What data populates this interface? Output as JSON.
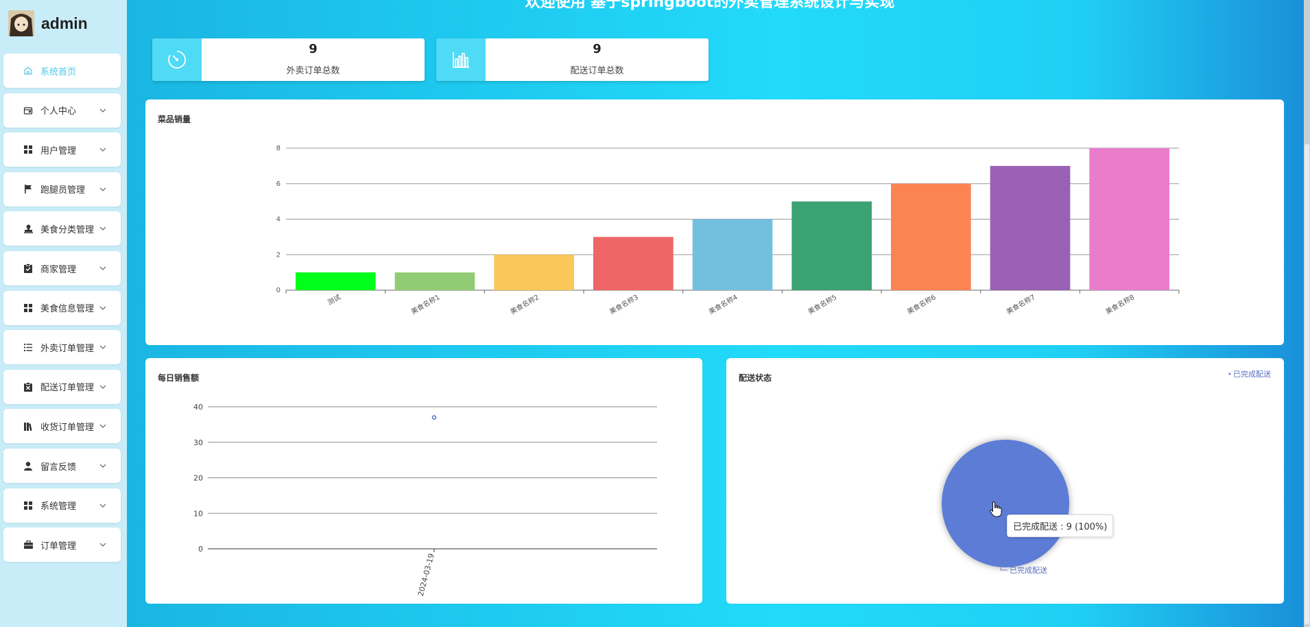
{
  "user": {
    "name": "admin"
  },
  "page": {
    "title": "欢迎使用 基于springboot的外卖管理系统设计与实现"
  },
  "sidebar": {
    "items": [
      {
        "label": "系统首页",
        "icon": "home-icon",
        "active": true
      },
      {
        "label": "个人中心",
        "icon": "wallet-icon"
      },
      {
        "label": "用户管理",
        "icon": "grid-icon"
      },
      {
        "label": "跑腿员管理",
        "icon": "flag-icon"
      },
      {
        "label": "美食分类管理",
        "icon": "stamp-icon"
      },
      {
        "label": "商家管理",
        "icon": "clipboard-check-icon"
      },
      {
        "label": "美食信息管理",
        "icon": "grid-icon"
      },
      {
        "label": "外卖订单管理",
        "icon": "list-icon"
      },
      {
        "label": "配送订单管理",
        "icon": "clipboard-x-icon"
      },
      {
        "label": "收货订单管理",
        "icon": "books-icon"
      },
      {
        "label": "留言反馈",
        "icon": "user-icon"
      },
      {
        "label": "系统管理",
        "icon": "grid-icon"
      },
      {
        "label": "订单管理",
        "icon": "briefcase-icon"
      }
    ]
  },
  "stats": [
    {
      "value": "9",
      "label": "外卖订单总数",
      "icon": "speedometer-icon"
    },
    {
      "value": "9",
      "label": "配送订单总数",
      "icon": "bar-chart-icon"
    }
  ],
  "panels": {
    "sales_title": "菜品销量",
    "daily_title": "每日销售额",
    "delivery_title": "配送状态"
  },
  "tooltip": "已完成配送 : 9 (100%)",
  "colors": {
    "accent": "#4fc7ea",
    "pie": "#5b7bd5"
  },
  "chart_data": [
    {
      "type": "bar",
      "title": "菜品销量",
      "categories": [
        "测试",
        "美食名称1",
        "美食名称2",
        "美食名称3",
        "美食名称4",
        "美食名称5",
        "美食名称6",
        "美食名称7",
        "美食名称8"
      ],
      "values": [
        1,
        1,
        2,
        3,
        4,
        5,
        6,
        7,
        8
      ],
      "colors": [
        "#00ff1a",
        "#91cc75",
        "#fac858",
        "#ee6666",
        "#73c0de",
        "#3ba272",
        "#fc8452",
        "#9a60b4",
        "#ea7ccc"
      ],
      "ylim": [
        0,
        8
      ],
      "yticks": [
        0,
        2,
        4,
        6,
        8
      ],
      "grid": true
    },
    {
      "type": "scatter",
      "title": "每日销售额",
      "x": [
        "2024-03-19"
      ],
      "y": [
        37
      ],
      "ylim": [
        0,
        40
      ],
      "yticks": [
        0,
        10,
        20,
        30,
        40
      ],
      "grid": true
    },
    {
      "type": "pie",
      "title": "配送状态",
      "slices": [
        {
          "label": "已完成配送",
          "value": 9,
          "percent": 100
        }
      ],
      "legend": "top-right"
    }
  ]
}
